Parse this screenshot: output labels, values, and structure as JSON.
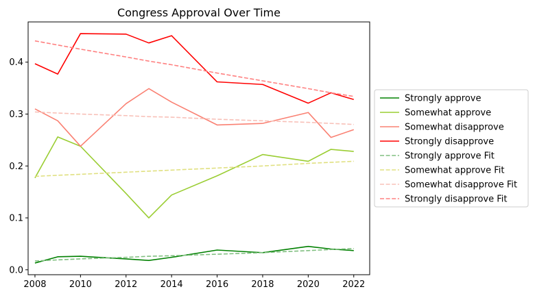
{
  "chart_data": {
    "type": "line",
    "title": "Congress Approval Over Time",
    "xlabel": "",
    "ylabel": "",
    "xlim": [
      2007.7,
      2022.7
    ],
    "ylim": [
      -0.0095,
      0.4775
    ],
    "xticks": [
      2008,
      2010,
      2012,
      2014,
      2016,
      2018,
      2020,
      2022
    ],
    "xtick_labels": [
      "2008",
      "2010",
      "2012",
      "2014",
      "2016",
      "2018",
      "2020",
      "2022"
    ],
    "yticks": [
      0.0,
      0.1,
      0.2,
      0.3,
      0.4
    ],
    "ytick_labels": [
      "0.0",
      "0.1",
      "0.2",
      "0.3",
      "0.4"
    ],
    "grid": false,
    "legend_position": "outside-right",
    "x": [
      2008,
      2009,
      2010,
      2012,
      2013,
      2014,
      2016,
      2018,
      2020,
      2021,
      2022
    ],
    "series": [
      {
        "name": "Strongly approve",
        "color": "#008000",
        "style": "solid",
        "values": [
          0.013,
          0.025,
          0.026,
          0.021,
          0.018,
          0.024,
          0.038,
          0.033,
          0.045,
          0.04,
          0.037
        ]
      },
      {
        "name": "Somewhat approve",
        "color": "#9acd32",
        "style": "solid",
        "values": [
          0.177,
          0.256,
          0.238,
          0.147,
          0.1,
          0.144,
          0.181,
          0.222,
          0.209,
          0.232,
          0.228
        ]
      },
      {
        "name": "Somewhat disapprove",
        "color": "#fa8072",
        "style": "solid",
        "values": [
          0.31,
          0.287,
          0.238,
          0.32,
          0.349,
          0.323,
          0.279,
          0.282,
          0.303,
          0.255,
          0.27
        ]
      },
      {
        "name": "Strongly disapprove",
        "color": "#ff0000",
        "style": "solid",
        "values": [
          0.397,
          0.377,
          0.455,
          0.454,
          0.437,
          0.451,
          0.362,
          0.357,
          0.321,
          0.341,
          0.328
        ]
      },
      {
        "name": "Strongly approve Fit",
        "color": "#80bf80",
        "style": "dashed",
        "values": [
          0.017,
          0.019,
          0.021,
          0.024,
          0.026,
          0.027,
          0.03,
          0.033,
          0.037,
          0.039,
          0.041
        ]
      },
      {
        "name": "Somewhat approve Fit",
        "color": "#e0e080",
        "style": "dashed",
        "values": [
          0.18,
          0.182,
          0.184,
          0.188,
          0.19,
          0.192,
          0.196,
          0.2,
          0.205,
          0.207,
          0.209
        ]
      },
      {
        "name": "Somewhat disapprove Fit",
        "color": "#f8c0b8",
        "style": "dashed",
        "values": [
          0.304,
          0.302,
          0.3,
          0.297,
          0.295,
          0.294,
          0.29,
          0.287,
          0.284,
          0.282,
          0.28
        ]
      },
      {
        "name": "Strongly disapprove Fit",
        "color": "#ff8080",
        "style": "dashed",
        "values": [
          0.441,
          0.433,
          0.425,
          0.41,
          0.402,
          0.395,
          0.379,
          0.364,
          0.349,
          0.341,
          0.334
        ]
      }
    ]
  }
}
